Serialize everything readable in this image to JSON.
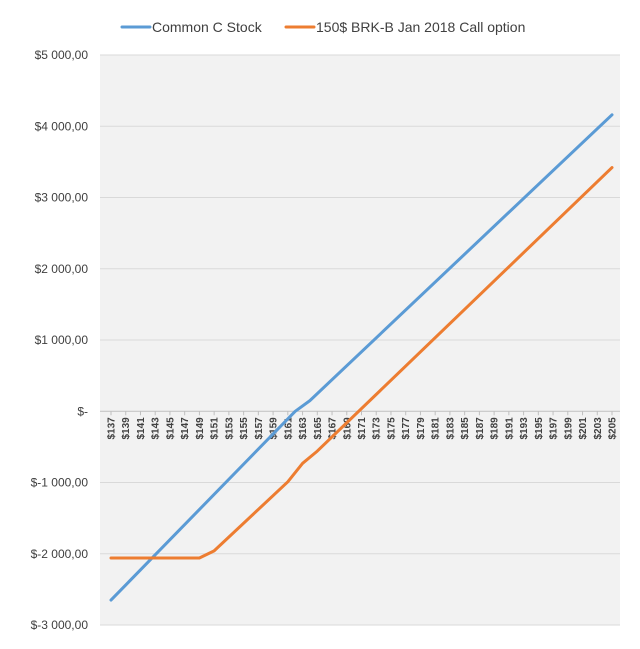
{
  "chart_data": {
    "type": "line",
    "title": "",
    "xlabel": "",
    "ylabel": "",
    "legend_position": "top",
    "grid": true,
    "ylim": [
      -3000,
      5000
    ],
    "yticks": [
      5000,
      4000,
      3000,
      2000,
      1000,
      0,
      -1000,
      -2000,
      -3000
    ],
    "ytick_labels": [
      "$5 000,00",
      "$4 000,00",
      "$3 000,00",
      "$2 000,00",
      "$1 000,00",
      "$-",
      "$-1 000,00",
      "$-2 000,00",
      "$-3 000,00"
    ],
    "x": [
      137,
      138,
      139,
      140,
      141,
      142,
      143,
      144,
      145,
      146,
      147,
      148,
      149,
      150,
      151,
      152,
      153,
      154,
      155,
      156,
      157,
      158,
      159,
      160,
      161,
      162,
      163,
      164,
      165,
      166,
      167,
      168,
      169,
      170,
      171,
      172,
      173,
      174,
      175,
      176,
      177,
      178,
      179,
      180,
      181,
      182,
      183,
      184,
      185,
      186,
      187,
      188,
      189,
      190,
      191,
      192,
      193,
      194,
      195,
      196,
      197,
      198,
      199,
      200,
      201,
      202,
      203,
      204,
      205
    ],
    "xtick_labels": [
      "$137",
      "$139",
      "$141",
      "$143",
      "$145",
      "$147",
      "$149",
      "$151",
      "$153",
      "$155",
      "$157",
      "$159",
      "$161",
      "$163",
      "$165",
      "$167",
      "$169",
      "$171",
      "$173",
      "$175",
      "$177",
      "$179",
      "$181",
      "$183",
      "$185",
      "$187",
      "$189",
      "$191",
      "$193",
      "$195",
      "$197",
      "$199",
      "$201",
      "$203",
      "$205"
    ],
    "series": [
      {
        "name": "Common C Stock",
        "color": "#5B9BD5",
        "points": [
          [
            137,
            -2650
          ],
          [
            162,
            0
          ],
          [
            164,
            150
          ],
          [
            205,
            4160
          ]
        ]
      },
      {
        "name": "150$ BRK-B Jan 2018 Call option",
        "color": "#ED7D31",
        "points": [
          [
            137,
            -2060
          ],
          [
            149,
            -2060
          ],
          [
            151,
            -1960
          ],
          [
            161,
            -990
          ],
          [
            163,
            -730
          ],
          [
            165,
            -560
          ],
          [
            205,
            3420
          ]
        ]
      }
    ]
  }
}
